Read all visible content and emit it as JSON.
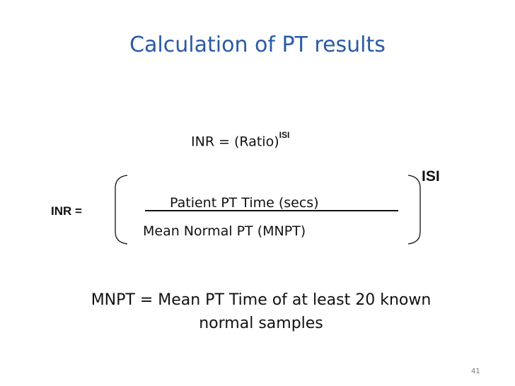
{
  "slide": {
    "title": "Calculation of PT results",
    "formula1_main": "INR = (Ratio)",
    "formula1_sup": "ISI",
    "inr_label": "INR =",
    "isi_label": "ISI",
    "numerator": "Patient PT Time (secs)",
    "denominator": "Mean Normal PT (MNPT)",
    "note_line1": "MNPT = Mean PT Time of at least 20 known",
    "note_line2": "normal samples",
    "page_number": "41"
  }
}
